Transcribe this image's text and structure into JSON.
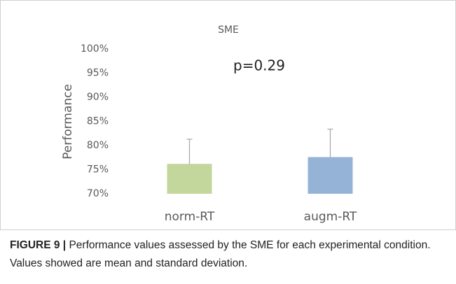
{
  "chart_data": {
    "type": "bar",
    "title": "SME",
    "y_label": "Performance",
    "annotation": "p=0.29",
    "categories": [
      "norm-RT",
      "augm-RT"
    ],
    "values": [
      76.2,
      77.6
    ],
    "errors": [
      5.1,
      5.8
    ],
    "colors": [
      "#c3d69b",
      "#95b3d7"
    ],
    "error_color": "#a6a6a6",
    "ylim": [
      70,
      100
    ],
    "yticks": [
      {
        "value": 70,
        "label": "70%"
      },
      {
        "value": 75,
        "label": "75%"
      },
      {
        "value": 80,
        "label": "80%"
      },
      {
        "value": 85,
        "label": "85%"
      },
      {
        "value": 90,
        "label": "90%"
      },
      {
        "value": 95,
        "label": "95%"
      },
      {
        "value": 100,
        "label": "100%"
      }
    ],
    "grid": false
  },
  "caption": {
    "label": "FIGURE 9 |",
    "text": "Performance values assessed by the SME for each experimental condition. Values showed are mean and standard deviation."
  }
}
